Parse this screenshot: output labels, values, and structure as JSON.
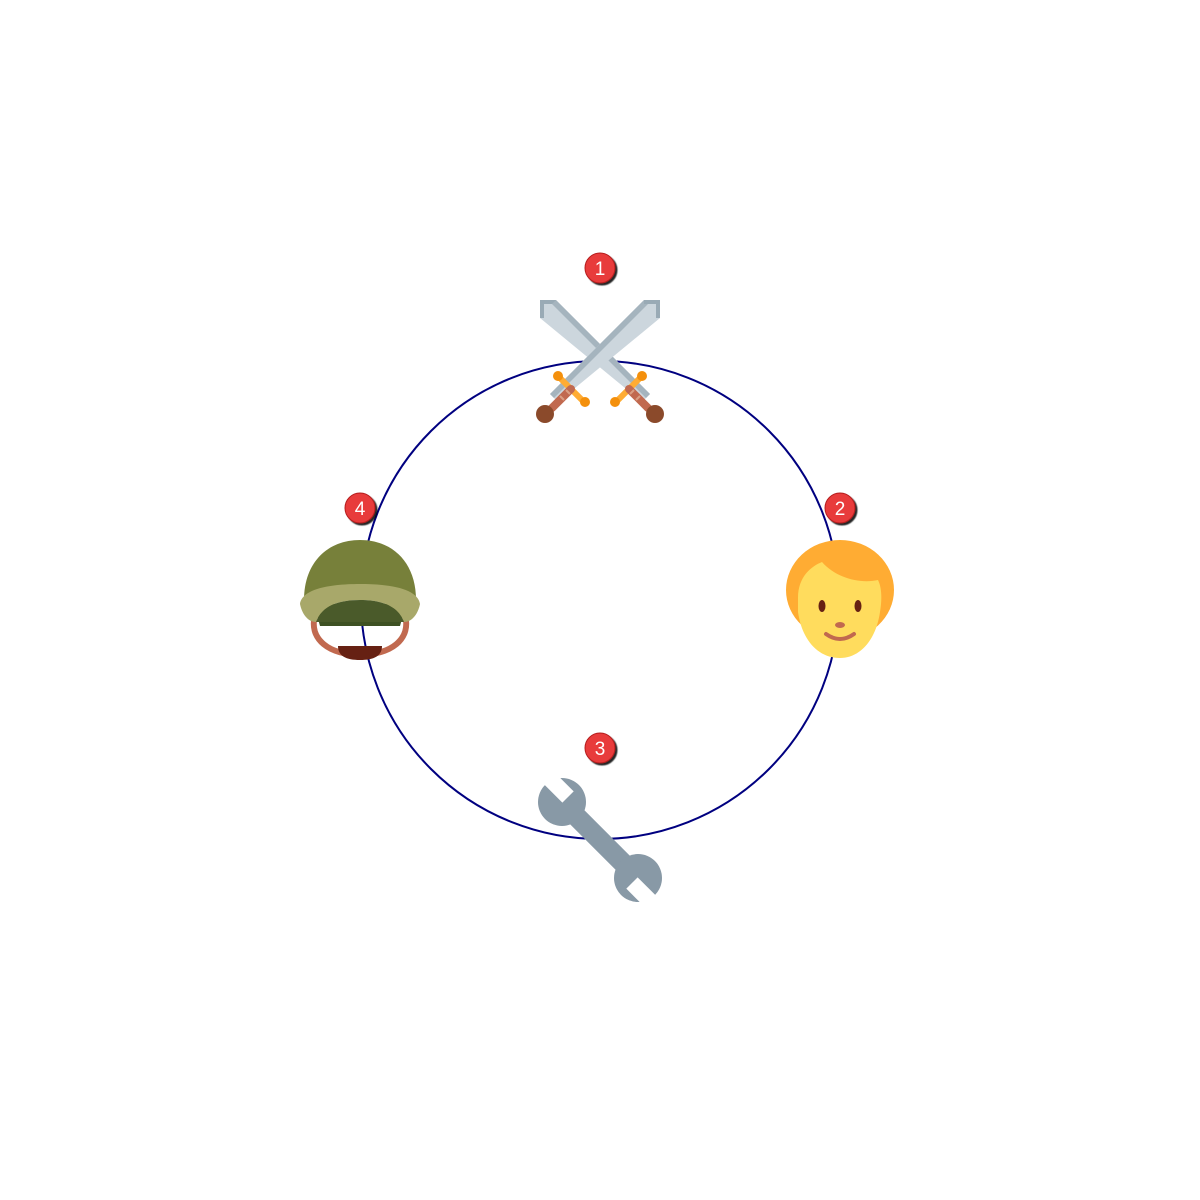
{
  "diagram": {
    "ring_color": "#000080",
    "badge_color": "#e83a3a",
    "nodes": [
      {
        "number": "1",
        "icon": "crossed-swords-icon"
      },
      {
        "number": "2",
        "icon": "person-icon"
      },
      {
        "number": "3",
        "icon": "wrench-icon"
      },
      {
        "number": "4",
        "icon": "military-helmet-icon"
      }
    ]
  }
}
